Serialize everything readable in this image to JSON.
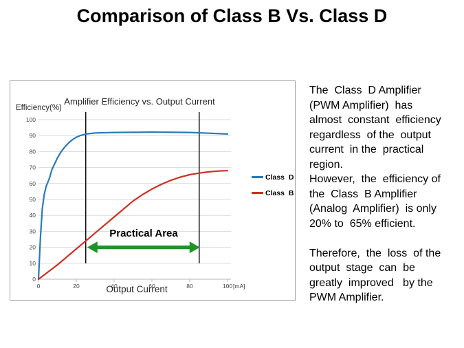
{
  "slide": {
    "title": "Comparison of Class B Vs. Class D"
  },
  "chart_data": {
    "type": "line",
    "title": "Amplifier Efficiency vs. Output Current",
    "ylabel": "Efficiency(%)",
    "xlabel": "Output Current",
    "x_unit": "[mA]",
    "xlim": [
      0,
      100
    ],
    "ylim": [
      0,
      100
    ],
    "x_ticks": [
      0,
      20,
      40,
      60,
      80,
      100
    ],
    "y_ticks": [
      0,
      10,
      20,
      30,
      40,
      50,
      60,
      70,
      80,
      90,
      100
    ],
    "grid": true,
    "legend_position": "right-of-plot",
    "series": [
      {
        "name": "Class D",
        "color": "#2b79b5",
        "points": [
          [
            0,
            0
          ],
          [
            1,
            26
          ],
          [
            2,
            44
          ],
          [
            3,
            53
          ],
          [
            4,
            58
          ],
          [
            5,
            61
          ],
          [
            6,
            64
          ],
          [
            7,
            68.5
          ],
          [
            8,
            71
          ],
          [
            9,
            73.5
          ],
          [
            10,
            76
          ],
          [
            11,
            78
          ],
          [
            12,
            80
          ],
          [
            14,
            83
          ],
          [
            16,
            85.5
          ],
          [
            18,
            87.5
          ],
          [
            20,
            89
          ],
          [
            22,
            90
          ],
          [
            25,
            91
          ],
          [
            30,
            91.7
          ],
          [
            40,
            92
          ],
          [
            60,
            92.2
          ],
          [
            80,
            92
          ],
          [
            90,
            91.5
          ],
          [
            100,
            91
          ]
        ]
      },
      {
        "name": "Class B",
        "color": "#cf2e24",
        "points": [
          [
            0,
            0
          ],
          [
            10,
            9
          ],
          [
            20,
            19
          ],
          [
            25,
            24
          ],
          [
            30,
            29
          ],
          [
            40,
            39
          ],
          [
            45,
            44
          ],
          [
            50,
            49
          ],
          [
            55,
            53
          ],
          [
            60,
            56.5
          ],
          [
            65,
            59.5
          ],
          [
            70,
            62
          ],
          [
            75,
            64
          ],
          [
            80,
            65.5
          ],
          [
            85,
            66.5
          ],
          [
            90,
            67.3
          ],
          [
            95,
            67.8
          ],
          [
            100,
            68
          ]
        ]
      }
    ],
    "annotations": {
      "label": "Practical Area",
      "range_mA": [
        25,
        85
      ],
      "arrow_y_pct": 20,
      "arrow_color": "#1e9427",
      "boundary_line_color": "#000000"
    },
    "style_colors": {
      "gridline": "#d9d9d9",
      "axis": "#b7b7b7",
      "tick_text": "#444444",
      "panel_border": "#a1a1a1"
    }
  },
  "explanation": {
    "lines": [
      "The  Class  D Amplifier",
      "(PWM Amplifier)  has",
      "almost  constant  efficiency",
      "regardless  of the  output",
      "current  in the  practical",
      "region.",
      "However,  the  efficiency of",
      "the  Class  B Amplifier",
      "(Analog  Amplifier)  is only",
      "20% to  65% efficient.",
      "",
      "Therefore,  the  loss  of the",
      "output  stage  can  be",
      "greatly  improved   by the",
      "PWM Amplifier."
    ]
  }
}
